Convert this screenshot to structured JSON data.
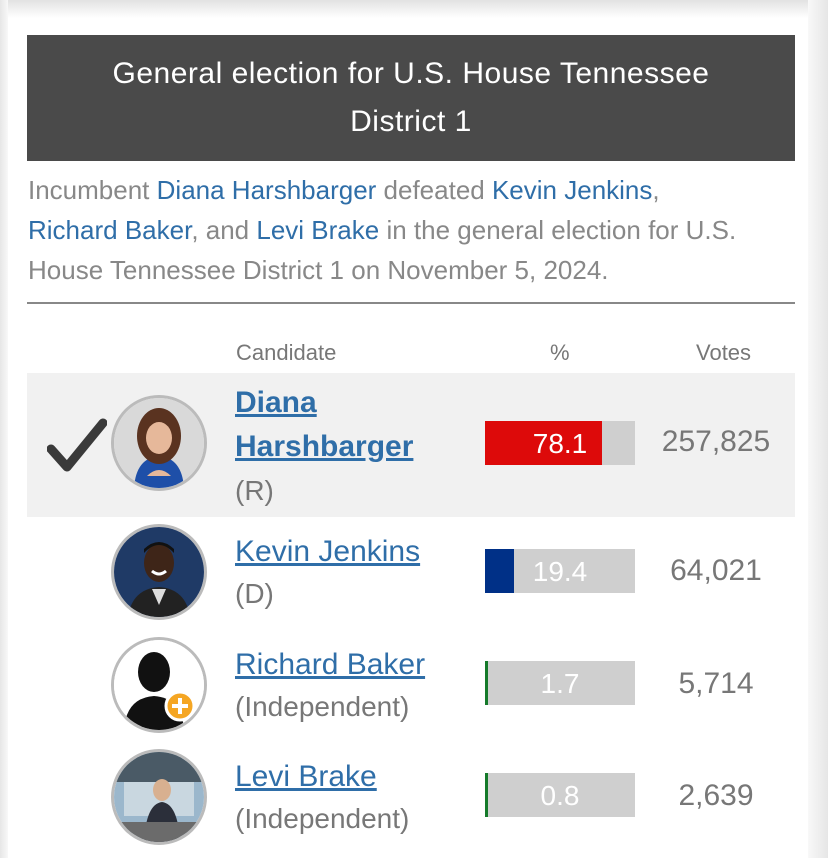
{
  "header": {
    "title_line1": "General election for U.S. House Tennessee",
    "title_line2": "District 1"
  },
  "summary": {
    "prefix": "Incumbent ",
    "winner": "Diana Harshbarger",
    "mid1": " defeated ",
    "opp1": "Kevin Jenkins",
    "mid2": ",",
    "opp2": "Richard Baker",
    "mid3": ", and ",
    "opp3": "Levi Brake",
    "suffix": " in the general election for U.S. House Tennessee District 1 on November 5, 2024."
  },
  "columns": {
    "candidate": "Candidate",
    "percent": "%",
    "votes": "Votes"
  },
  "candidates": [
    {
      "name_line1": "Diana",
      "name_line2": "Harshbarger",
      "party": "(R)",
      "percent": "78.1",
      "pct_value": 78.1,
      "votes": "257,825",
      "color": "#dd0a0a",
      "winner": true
    },
    {
      "name": "Kevin Jenkins",
      "party": "(D)",
      "percent": "19.4",
      "pct_value": 19.4,
      "votes": "64,021",
      "color": "#003087"
    },
    {
      "name": "Richard Baker",
      "party": "(Independent)",
      "percent": "1.7",
      "pct_value": 1.7,
      "votes": "5,714",
      "color": "#157a2a"
    },
    {
      "name": "Levi Brake",
      "party": "(Independent)",
      "percent": "0.8",
      "pct_value": 0.8,
      "votes": "2,639",
      "color": "#157a2a"
    }
  ]
}
